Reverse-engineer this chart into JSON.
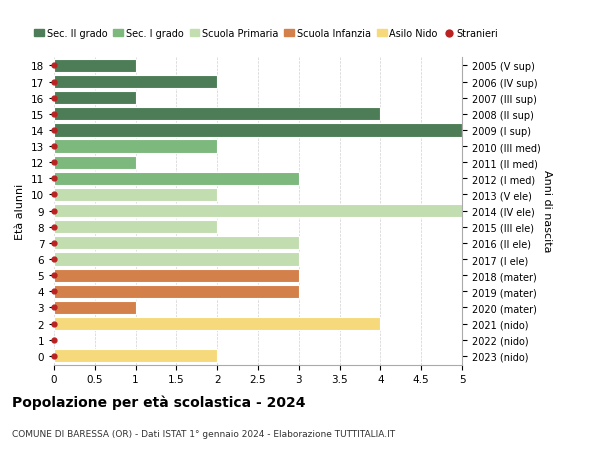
{
  "ages": [
    18,
    17,
    16,
    15,
    14,
    13,
    12,
    11,
    10,
    9,
    8,
    7,
    6,
    5,
    4,
    3,
    2,
    1,
    0
  ],
  "right_labels": [
    "2005 (V sup)",
    "2006 (IV sup)",
    "2007 (III sup)",
    "2008 (II sup)",
    "2009 (I sup)",
    "2010 (III med)",
    "2011 (II med)",
    "2012 (I med)",
    "2013 (V ele)",
    "2014 (IV ele)",
    "2015 (III ele)",
    "2016 (II ele)",
    "2017 (I ele)",
    "2018 (mater)",
    "2019 (mater)",
    "2020 (mater)",
    "2021 (nido)",
    "2022 (nido)",
    "2023 (nido)"
  ],
  "bar_values": [
    1,
    2,
    1,
    4,
    5,
    2,
    1,
    3,
    2,
    5,
    2,
    3,
    3,
    3,
    3,
    1,
    4,
    0,
    2
  ],
  "bar_colors": [
    "#4d7d56",
    "#4d7d56",
    "#4d7d56",
    "#4d7d56",
    "#4d7d56",
    "#7db87d",
    "#7db87d",
    "#7db87d",
    "#c2ddb0",
    "#c2ddb0",
    "#c2ddb0",
    "#c2ddb0",
    "#c2ddb0",
    "#d4804a",
    "#d4804a",
    "#d4804a",
    "#f5d97a",
    "#f5d97a",
    "#f5d97a"
  ],
  "dot_color": "#bb2222",
  "legend_items": [
    {
      "label": "Sec. II grado",
      "color": "#4d7d56"
    },
    {
      "label": "Sec. I grado",
      "color": "#7db87d"
    },
    {
      "label": "Scuola Primaria",
      "color": "#c2ddb0"
    },
    {
      "label": "Scuola Infanzia",
      "color": "#d4804a"
    },
    {
      "label": "Asilo Nido",
      "color": "#f5d97a"
    },
    {
      "label": "Stranieri",
      "color": "#bb2222"
    }
  ],
  "ylabel": "Età alunni",
  "right_ylabel": "Anni di nascita",
  "xlim": [
    0,
    5.0
  ],
  "xticks": [
    0,
    0.5,
    1.0,
    1.5,
    2.0,
    2.5,
    3.0,
    3.5,
    4.0,
    4.5,
    5.0
  ],
  "title": "Popolazione per età scolastica - 2024",
  "subtitle": "COMUNE DI BARESSA (OR) - Dati ISTAT 1° gennaio 2024 - Elaborazione TUTTITALIA.IT",
  "background_color": "#ffffff",
  "grid_color": "#d0d0d0"
}
